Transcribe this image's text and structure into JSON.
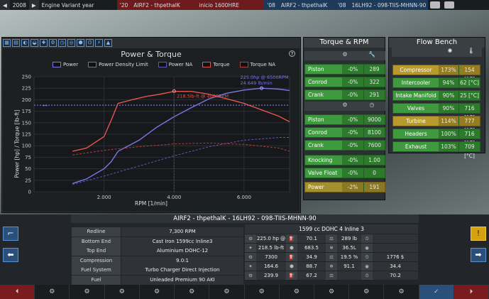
{
  "topbar": {
    "year": "2008",
    "mode": "Engine Variant year",
    "model_year": "'20",
    "model_name": "AIRF2 - thpethalK",
    "trim_name": "inicio 1600HRE",
    "variant_year": "'08",
    "variant_name": "AIRF2 - thpethalK",
    "engine_year": "'08",
    "engine_code": "16LH92 - 098-TIIS-MHNN-90"
  },
  "panel_torque_rpm": {
    "title": "Torque & RPM",
    "torque_rows": [
      {
        "label": "Piston",
        "pct": "-0%",
        "val": "289"
      },
      {
        "label": "Conrod",
        "pct": "-0%",
        "val": "322"
      },
      {
        "label": "Crank",
        "pct": "-0%",
        "val": "291"
      }
    ],
    "rpm_rows": [
      {
        "label": "Piston",
        "pct": "-0%",
        "val": "9000"
      },
      {
        "label": "Conrod",
        "pct": "-0%",
        "val": "8100"
      },
      {
        "label": "Crank",
        "pct": "-0%",
        "val": "7600"
      }
    ],
    "extra_rows": [
      {
        "label": "Knocking",
        "pct": "-0%",
        "val": "1.00"
      },
      {
        "label": "Valve Float",
        "pct": "-0%",
        "val": "0"
      }
    ],
    "power_row": {
      "label": "Power",
      "pct": "-2%",
      "val": "191"
    }
  },
  "panel_flow": {
    "title": "Flow Bench",
    "rows": [
      {
        "label": "Compressor",
        "pct": "173%",
        "temp": "154 [°C]",
        "warn": true
      },
      {
        "label": "Intercooler",
        "pct": "94%",
        "temp": "62 [°C]",
        "warn": false
      },
      {
        "label": "Intake Manifold",
        "pct": "90%",
        "temp": "25 [°C]",
        "warn": false
      },
      {
        "label": "Valves",
        "pct": "90%",
        "temp": "716 [°C]",
        "warn": false
      },
      {
        "label": "Turbine",
        "pct": "114%",
        "temp": "777 [°C]",
        "warn": true
      },
      {
        "label": "Headers",
        "pct": "100%",
        "temp": "716 [°C]",
        "warn": false
      },
      {
        "label": "Exhaust",
        "pct": "103%",
        "temp": "709 [°C]",
        "warn": false
      }
    ]
  },
  "chart_data": {
    "type": "line",
    "title": "Power & Torque",
    "xlabel": "RPM [1/min]",
    "ylabel": "Power [hp] / Torque [lb-ft]",
    "xlim": [
      0,
      7300
    ],
    "ylim": [
      0,
      250
    ],
    "xticks": [
      {
        "v": 2000,
        "t": "2,000"
      },
      {
        "v": 4000,
        "t": "4,000"
      },
      {
        "v": 6000,
        "t": "6,000"
      }
    ],
    "yticks": [
      0,
      25,
      50,
      75,
      100,
      125,
      150,
      175,
      200,
      225,
      250
    ],
    "legend": [
      "Power",
      "Power Density Limit",
      "Power NA",
      "Torque",
      "Torque NA"
    ],
    "power_density_limit": 188,
    "series": [
      {
        "name": "Power",
        "color": "#7b78e6",
        "dash": false,
        "x": [
          1100,
          1500,
          2000,
          2200,
          2400,
          3000,
          3500,
          4000,
          4500,
          5000,
          5500,
          6000,
          6500,
          7000,
          7300
        ],
        "y": [
          18,
          28,
          50,
          65,
          88,
          112,
          140,
          163,
          183,
          202,
          214,
          221,
          225,
          223,
          220
        ]
      },
      {
        "name": "Torque",
        "color": "#e0564f",
        "dash": false,
        "x": [
          1100,
          1500,
          2000,
          2200,
          2400,
          2800,
          3200,
          3600,
          4000,
          4500,
          5000,
          5500,
          6000,
          6500,
          7000,
          7300
        ],
        "y": [
          88,
          95,
          120,
          155,
          192,
          200,
          207,
          212,
          218,
          218,
          212,
          202,
          192,
          178,
          164,
          152
        ]
      },
      {
        "name": "Power NA",
        "color": "#5c5ab8",
        "dash": true,
        "x": [
          1100,
          2000,
          3000,
          4000,
          5000,
          6000,
          7000,
          7300
        ],
        "y": [
          16,
          34,
          56,
          78,
          98,
          112,
          118,
          118
        ]
      },
      {
        "name": "Torque NA",
        "color": "#a8423d",
        "dash": true,
        "x": [
          1100,
          2000,
          3000,
          4000,
          5000,
          6000,
          7000,
          7300
        ],
        "y": [
          80,
          90,
          98,
          104,
          106,
          103,
          95,
          88
        ]
      }
    ],
    "annotations": [
      {
        "text": "218.5lb-ft @ 4000RPM",
        "x": 4000,
        "y": 218.5,
        "color": "#e0564f"
      },
      {
        "text": "225.0hp @ 6500RPM",
        "x": 6500,
        "y": 225,
        "color": "#7b78e6"
      },
      {
        "text": "24.649 lb/min",
        "x": 6500,
        "y": 225,
        "color": "#7b78e6"
      }
    ]
  },
  "bottom": {
    "title": "AIRF2 - thpethalK - 16LH92 - 098-TIIS-MHNN-90",
    "specs": [
      {
        "k": "Redline",
        "v": "7,300 RPM"
      },
      {
        "k": "Bottom End",
        "v": "Cast Iron 1599cc Inline3"
      },
      {
        "k": "Top End",
        "v": "Aluminium DOHC-12"
      },
      {
        "k": "Compression",
        "v": "9.0:1"
      },
      {
        "k": "Fuel System",
        "v": "Turbo Charger Direct Injection"
      },
      {
        "k": "Fuel",
        "v": "Unleaded Premium 90 AKI"
      }
    ],
    "right_header": "1599 cc DOHC 4  Inline 3",
    "right_grid": [
      [
        "225.0 hp @ 6500RPM",
        "70.1",
        "289 lb"
      ],
      [
        "218.5 lb-ft @ 4000RPM",
        "683.5",
        "36.5L"
      ],
      [
        "7300",
        "34.9",
        "19.5 %",
        "1776 $"
      ],
      [
        "164.6",
        "88.7",
        "91.1",
        "34.4"
      ],
      [
        "239.9",
        "67.2",
        "",
        "70.2"
      ]
    ]
  },
  "nav": [
    "⏴",
    "⚙",
    "⚙",
    "⚙",
    "⚙",
    "⚙",
    "⚙",
    "⚙",
    "⚙",
    "⚙",
    "⚙",
    "⚙",
    "✓",
    "⏵"
  ]
}
